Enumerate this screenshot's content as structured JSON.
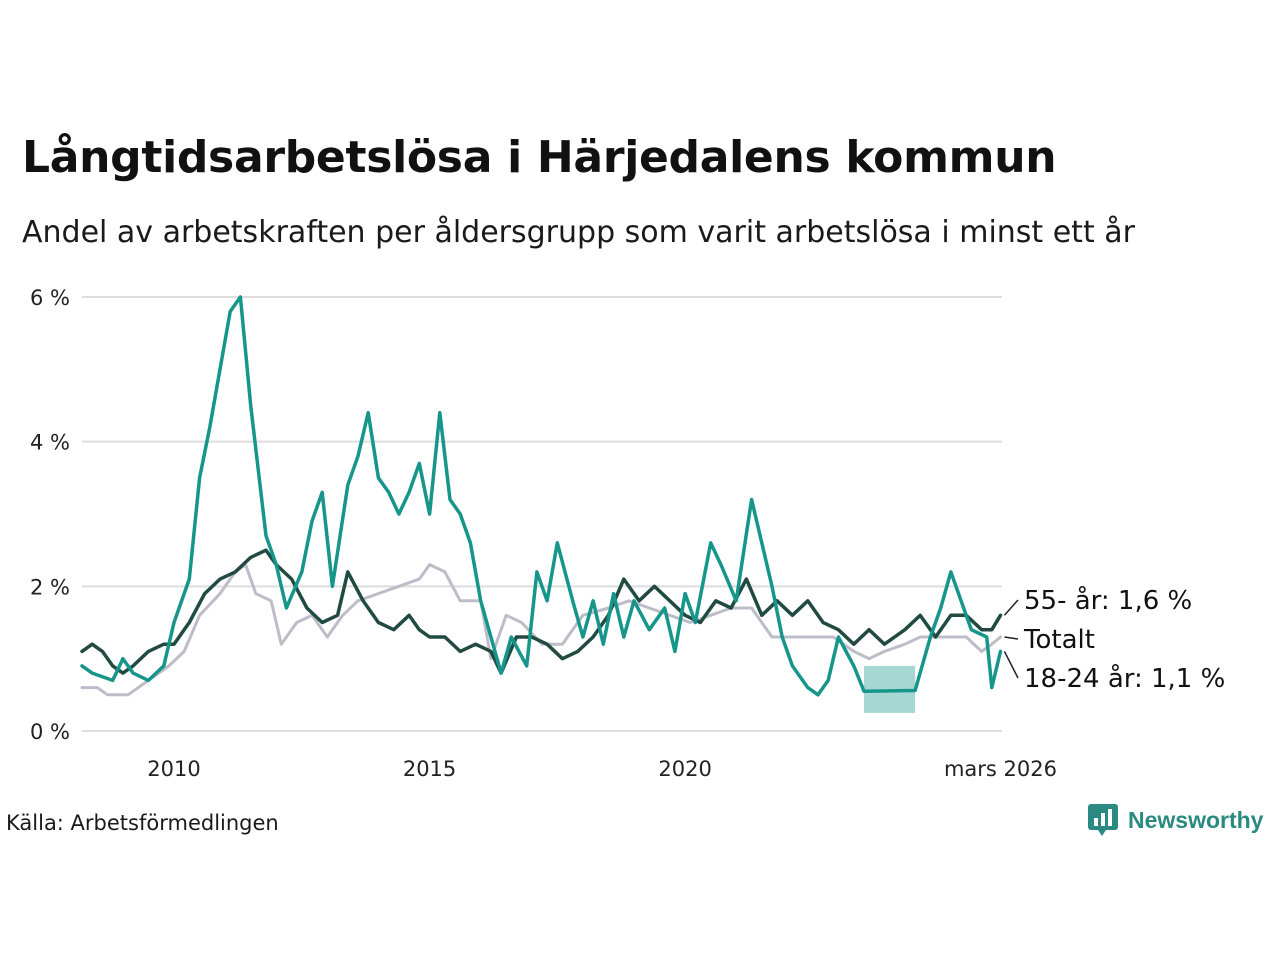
{
  "header": {
    "title": "Långtidsarbetslösa i Härjedalens kommun",
    "subtitle": "Andel av arbetskraften per åldersgrupp som varit arbetslösa i minst ett år"
  },
  "footer": {
    "source": "Källa: Arbetsförmedlingen",
    "brand": "Newsworthy"
  },
  "colors": {
    "youth": "#16968a",
    "old": "#214a42",
    "total": "#bdbcc8",
    "grid": "#dddddd",
    "brand": "#2a8a82"
  },
  "chart_data": {
    "type": "line",
    "title": "Långtidsarbetslösa i Härjedalens kommun",
    "xlabel": "",
    "ylabel": "",
    "xlim": [
      2008.2,
      2026.2
    ],
    "ylim": [
      0,
      6
    ],
    "y_ticks": [
      {
        "value": 0,
        "label": "0 %"
      },
      {
        "value": 2,
        "label": "2 %"
      },
      {
        "value": 4,
        "label": "4 %"
      },
      {
        "value": 6,
        "label": "6 %"
      }
    ],
    "x_ticks": [
      {
        "value": 2010,
        "label": "2010"
      },
      {
        "value": 2015,
        "label": "2015"
      },
      {
        "value": 2020,
        "label": "2020"
      },
      {
        "value": 2026.17,
        "label": "mars 2026"
      }
    ],
    "series": [
      {
        "name": "Totalt",
        "key": "total",
        "end_label": "Totalt",
        "points": [
          [
            2008.2,
            0.6
          ],
          [
            2008.5,
            0.6
          ],
          [
            2008.7,
            0.5
          ],
          [
            2009.1,
            0.5
          ],
          [
            2009.3,
            0.6
          ],
          [
            2009.5,
            0.7
          ],
          [
            2009.9,
            0.9
          ],
          [
            2010.2,
            1.1
          ],
          [
            2010.5,
            1.6
          ],
          [
            2010.9,
            1.9
          ],
          [
            2011.2,
            2.2
          ],
          [
            2011.4,
            2.3
          ],
          [
            2011.6,
            1.9
          ],
          [
            2011.9,
            1.8
          ],
          [
            2012.1,
            1.2
          ],
          [
            2012.4,
            1.5
          ],
          [
            2012.7,
            1.6
          ],
          [
            2013.0,
            1.3
          ],
          [
            2013.3,
            1.6
          ],
          [
            2013.6,
            1.8
          ],
          [
            2014.0,
            1.9
          ],
          [
            2014.4,
            2.0
          ],
          [
            2014.8,
            2.1
          ],
          [
            2015.0,
            2.3
          ],
          [
            2015.3,
            2.2
          ],
          [
            2015.6,
            1.8
          ],
          [
            2016.0,
            1.8
          ],
          [
            2016.2,
            1.0
          ],
          [
            2016.5,
            1.6
          ],
          [
            2016.8,
            1.5
          ],
          [
            2017.2,
            1.2
          ],
          [
            2017.6,
            1.2
          ],
          [
            2018.0,
            1.6
          ],
          [
            2018.5,
            1.7
          ],
          [
            2018.9,
            1.8
          ],
          [
            2019.3,
            1.7
          ],
          [
            2019.7,
            1.6
          ],
          [
            2020.1,
            1.5
          ],
          [
            2020.5,
            1.6
          ],
          [
            2020.9,
            1.7
          ],
          [
            2021.3,
            1.7
          ],
          [
            2021.7,
            1.3
          ],
          [
            2022.1,
            1.3
          ],
          [
            2022.5,
            1.3
          ],
          [
            2022.9,
            1.3
          ],
          [
            2023.3,
            1.1
          ],
          [
            2023.6,
            1.0
          ],
          [
            2023.9,
            1.1
          ],
          [
            2024.3,
            1.2
          ],
          [
            2024.6,
            1.3
          ],
          [
            2025.0,
            1.3
          ],
          [
            2025.5,
            1.3
          ],
          [
            2025.8,
            1.1
          ],
          [
            2026.0,
            1.2
          ],
          [
            2026.17,
            1.3
          ]
        ]
      },
      {
        "name": "55- år",
        "key": "old",
        "end_label": "55- år: 1,6 %",
        "points": [
          [
            2008.2,
            1.1
          ],
          [
            2008.4,
            1.2
          ],
          [
            2008.6,
            1.1
          ],
          [
            2008.8,
            0.9
          ],
          [
            2009.0,
            0.8
          ],
          [
            2009.2,
            0.9
          ],
          [
            2009.5,
            1.1
          ],
          [
            2009.8,
            1.2
          ],
          [
            2010.0,
            1.2
          ],
          [
            2010.3,
            1.5
          ],
          [
            2010.6,
            1.9
          ],
          [
            2010.9,
            2.1
          ],
          [
            2011.2,
            2.2
          ],
          [
            2011.5,
            2.4
          ],
          [
            2011.8,
            2.5
          ],
          [
            2012.0,
            2.3
          ],
          [
            2012.3,
            2.1
          ],
          [
            2012.6,
            1.7
          ],
          [
            2012.9,
            1.5
          ],
          [
            2013.2,
            1.6
          ],
          [
            2013.4,
            2.2
          ],
          [
            2013.7,
            1.8
          ],
          [
            2014.0,
            1.5
          ],
          [
            2014.3,
            1.4
          ],
          [
            2014.6,
            1.6
          ],
          [
            2014.8,
            1.4
          ],
          [
            2015.0,
            1.3
          ],
          [
            2015.3,
            1.3
          ],
          [
            2015.6,
            1.1
          ],
          [
            2015.9,
            1.2
          ],
          [
            2016.2,
            1.1
          ],
          [
            2016.4,
            0.8
          ],
          [
            2016.7,
            1.3
          ],
          [
            2017.0,
            1.3
          ],
          [
            2017.3,
            1.2
          ],
          [
            2017.6,
            1.0
          ],
          [
            2017.9,
            1.1
          ],
          [
            2018.2,
            1.3
          ],
          [
            2018.5,
            1.6
          ],
          [
            2018.8,
            2.1
          ],
          [
            2019.1,
            1.8
          ],
          [
            2019.4,
            2.0
          ],
          [
            2019.7,
            1.8
          ],
          [
            2020.0,
            1.6
          ],
          [
            2020.3,
            1.5
          ],
          [
            2020.6,
            1.8
          ],
          [
            2020.9,
            1.7
          ],
          [
            2021.2,
            2.1
          ],
          [
            2021.5,
            1.6
          ],
          [
            2021.8,
            1.8
          ],
          [
            2022.1,
            1.6
          ],
          [
            2022.4,
            1.8
          ],
          [
            2022.7,
            1.5
          ],
          [
            2023.0,
            1.4
          ],
          [
            2023.3,
            1.2
          ],
          [
            2023.6,
            1.4
          ],
          [
            2023.9,
            1.2
          ],
          [
            2024.3,
            1.4
          ],
          [
            2024.6,
            1.6
          ],
          [
            2024.9,
            1.3
          ],
          [
            2025.2,
            1.6
          ],
          [
            2025.5,
            1.6
          ],
          [
            2025.8,
            1.4
          ],
          [
            2026.0,
            1.4
          ],
          [
            2026.17,
            1.6
          ]
        ]
      },
      {
        "name": "18-24 år",
        "key": "youth",
        "end_label": "18-24 år: 1,1 %",
        "points": [
          [
            2008.2,
            0.9
          ],
          [
            2008.4,
            0.8
          ],
          [
            2008.8,
            0.7
          ],
          [
            2009.0,
            1.0
          ],
          [
            2009.2,
            0.8
          ],
          [
            2009.5,
            0.7
          ],
          [
            2009.8,
            0.9
          ],
          [
            2010.0,
            1.5
          ],
          [
            2010.3,
            2.1
          ],
          [
            2010.5,
            3.5
          ],
          [
            2010.7,
            4.2
          ],
          [
            2010.9,
            5.0
          ],
          [
            2011.1,
            5.8
          ],
          [
            2011.3,
            6.0
          ],
          [
            2011.5,
            4.5
          ],
          [
            2011.8,
            2.7
          ],
          [
            2012.0,
            2.3
          ],
          [
            2012.2,
            1.7
          ],
          [
            2012.5,
            2.2
          ],
          [
            2012.7,
            2.9
          ],
          [
            2012.9,
            3.3
          ],
          [
            2013.1,
            2.0
          ],
          [
            2013.4,
            3.4
          ],
          [
            2013.6,
            3.8
          ],
          [
            2013.8,
            4.4
          ],
          [
            2014.0,
            3.5
          ],
          [
            2014.2,
            3.3
          ],
          [
            2014.4,
            3.0
          ],
          [
            2014.6,
            3.3
          ],
          [
            2014.8,
            3.7
          ],
          [
            2015.0,
            3.0
          ],
          [
            2015.2,
            4.4
          ],
          [
            2015.4,
            3.2
          ],
          [
            2015.6,
            3.0
          ],
          [
            2015.8,
            2.6
          ],
          [
            2016.0,
            1.8
          ],
          [
            2016.2,
            1.3
          ],
          [
            2016.4,
            0.8
          ],
          [
            2016.6,
            1.3
          ],
          [
            2016.9,
            0.9
          ],
          [
            2017.1,
            2.2
          ],
          [
            2017.3,
            1.8
          ],
          [
            2017.5,
            2.6
          ],
          [
            2017.8,
            1.8
          ],
          [
            2018.0,
            1.3
          ],
          [
            2018.2,
            1.8
          ],
          [
            2018.4,
            1.2
          ],
          [
            2018.6,
            1.9
          ],
          [
            2018.8,
            1.3
          ],
          [
            2019.0,
            1.8
          ],
          [
            2019.3,
            1.4
          ],
          [
            2019.6,
            1.7
          ],
          [
            2019.8,
            1.1
          ],
          [
            2020.0,
            1.9
          ],
          [
            2020.2,
            1.5
          ],
          [
            2020.5,
            2.6
          ],
          [
            2020.7,
            2.3
          ],
          [
            2021.0,
            1.8
          ],
          [
            2021.3,
            3.2
          ],
          [
            2021.5,
            2.6
          ],
          [
            2021.7,
            2.0
          ],
          [
            2021.9,
            1.3
          ],
          [
            2022.1,
            0.9
          ],
          [
            2022.4,
            0.6
          ],
          [
            2022.6,
            0.5
          ],
          [
            2022.8,
            0.7
          ],
          [
            2023.0,
            1.3
          ],
          [
            2023.3,
            0.9
          ],
          [
            2023.5,
            0.55
          ],
          [
            2024.5,
            0.56
          ],
          [
            2024.8,
            1.3
          ],
          [
            2025.0,
            1.7
          ],
          [
            2025.2,
            2.2
          ],
          [
            2025.4,
            1.8
          ],
          [
            2025.6,
            1.4
          ],
          [
            2025.9,
            1.3
          ],
          [
            2026.0,
            0.6
          ],
          [
            2026.17,
            1.1
          ]
        ]
      }
    ],
    "uncertainty_band": {
      "series": "18-24 år",
      "points": [
        [
          2023.5,
          0.9,
          0.25
        ],
        [
          2024.5,
          0.9,
          0.25
        ]
      ]
    }
  }
}
